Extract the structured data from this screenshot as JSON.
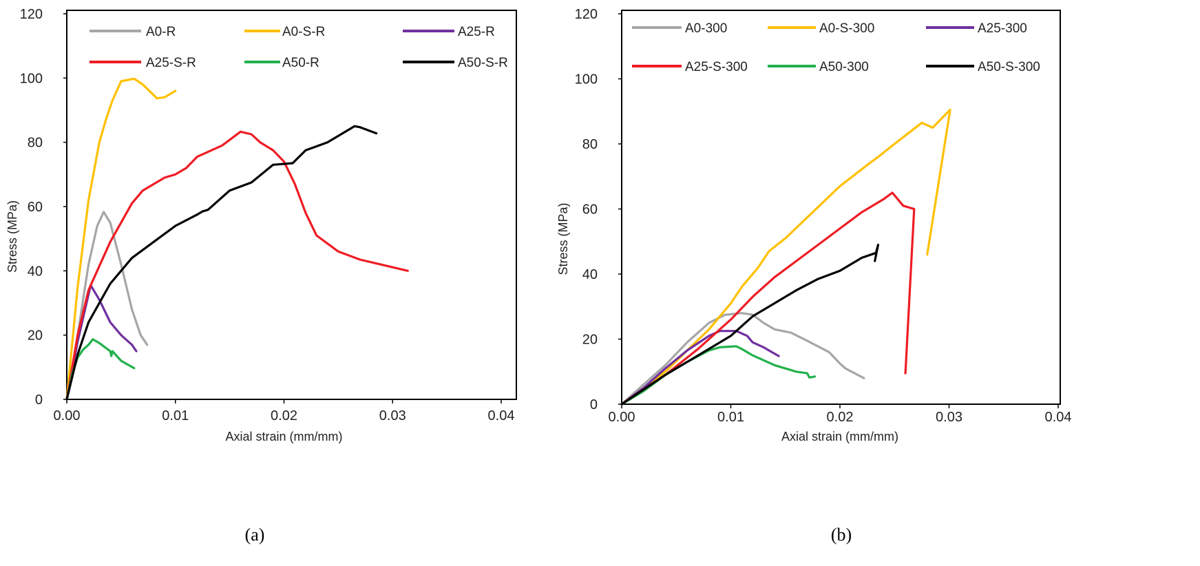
{
  "chart_data": [
    {
      "type": "line",
      "caption": "(a)",
      "xlabel": "Axial strain (mm/mm)",
      "ylabel": "Stress (MPa)",
      "xlim": [
        0,
        0.04
      ],
      "ylim": [
        0,
        120
      ],
      "xticks": [
        "0.00",
        "0.01",
        "0.02",
        "0.03",
        "0.04"
      ],
      "yticks": [
        "0",
        "20",
        "40",
        "60",
        "80",
        "100",
        "120"
      ],
      "grid": false,
      "legend_position": "top",
      "series": [
        {
          "name": "A0-R",
          "color": "#a6a6a6",
          "points": [
            [
              0,
              0
            ],
            [
              0.001,
              20
            ],
            [
              0.002,
              42
            ],
            [
              0.0028,
              54
            ],
            [
              0.0034,
              58.3
            ],
            [
              0.004,
              55
            ],
            [
              0.005,
              42
            ],
            [
              0.006,
              28
            ],
            [
              0.0068,
              20
            ],
            [
              0.0074,
              17
            ]
          ]
        },
        {
          "name": "A0-S-R",
          "color": "#ffc000",
          "points": [
            [
              0,
              0
            ],
            [
              0.001,
              35
            ],
            [
              0.002,
              62
            ],
            [
              0.003,
              80
            ],
            [
              0.0036,
              87
            ],
            [
              0.0042,
              93
            ],
            [
              0.005,
              99
            ],
            [
              0.0062,
              99.8
            ],
            [
              0.007,
              98
            ],
            [
              0.0083,
              93.7
            ],
            [
              0.009,
              94
            ],
            [
              0.01,
              96
            ]
          ]
        },
        {
          "name": "A25-R",
          "color": "#7030a0",
          "points": [
            [
              0,
              0
            ],
            [
              0.001,
              18
            ],
            [
              0.0022,
              35.5
            ],
            [
              0.003,
              31
            ],
            [
              0.004,
              24
            ],
            [
              0.005,
              20
            ],
            [
              0.006,
              17
            ],
            [
              0.0064,
              15
            ]
          ]
        },
        {
          "name": "A25-S-R",
          "color": "#ee1c24",
          "points": [
            [
              0,
              0
            ],
            [
              0.001,
              20
            ],
            [
              0.002,
              34
            ],
            [
              0.004,
              49
            ],
            [
              0.006,
              61
            ],
            [
              0.007,
              65
            ],
            [
              0.009,
              69
            ],
            [
              0.01,
              70
            ],
            [
              0.011,
              72
            ],
            [
              0.012,
              75.5
            ],
            [
              0.0143,
              79
            ],
            [
              0.016,
              83.3
            ],
            [
              0.017,
              82.5
            ],
            [
              0.0178,
              80
            ],
            [
              0.019,
              77.5
            ],
            [
              0.02,
              74
            ],
            [
              0.021,
              67
            ],
            [
              0.022,
              58
            ],
            [
              0.023,
              51
            ],
            [
              0.025,
              46
            ],
            [
              0.027,
              43.5
            ],
            [
              0.0314,
              40
            ]
          ]
        },
        {
          "name": "A50-R",
          "color": "#22b14c",
          "points": [
            [
              0,
              0
            ],
            [
              0.0005,
              8
            ],
            [
              0.001,
              13
            ],
            [
              0.0015,
              15.5
            ],
            [
              0.002,
              17
            ],
            [
              0.0024,
              18.7
            ],
            [
              0.003,
              17.5
            ],
            [
              0.004,
              15
            ],
            [
              0.0041,
              13.5
            ],
            [
              0.0042,
              15
            ],
            [
              0.005,
              12
            ],
            [
              0.0062,
              9.7
            ]
          ]
        },
        {
          "name": "A50-S-R",
          "color": "#000000",
          "points": [
            [
              0,
              0
            ],
            [
              0.001,
              14
            ],
            [
              0.002,
              24
            ],
            [
              0.003,
              30
            ],
            [
              0.004,
              36
            ],
            [
              0.005,
              40
            ],
            [
              0.006,
              44
            ],
            [
              0.008,
              49
            ],
            [
              0.01,
              54
            ],
            [
              0.012,
              57.5
            ],
            [
              0.0125,
              58.5
            ],
            [
              0.013,
              59
            ],
            [
              0.015,
              65
            ],
            [
              0.017,
              67.5
            ],
            [
              0.019,
              73
            ],
            [
              0.0208,
              73.5
            ],
            [
              0.022,
              77.5
            ],
            [
              0.024,
              80
            ],
            [
              0.0265,
              85
            ],
            [
              0.027,
              84.7
            ],
            [
              0.0285,
              82.8
            ]
          ]
        }
      ]
    },
    {
      "type": "line",
      "caption": "(b)",
      "xlabel": "Axial strain (mm/mm)",
      "ylabel": "Stress (MPa)",
      "xlim": [
        0,
        0.04
      ],
      "ylim": [
        0,
        120
      ],
      "xticks": [
        "0.00",
        "0.01",
        "0.02",
        "0.03",
        "0.04"
      ],
      "yticks": [
        "0",
        "20",
        "40",
        "60",
        "80",
        "100",
        "120"
      ],
      "grid": false,
      "legend_position": "top",
      "series": [
        {
          "name": "A0-300",
          "color": "#a6a6a6",
          "points": [
            [
              0,
              0
            ],
            [
              0.002,
              6
            ],
            [
              0.004,
              12
            ],
            [
              0.006,
              19
            ],
            [
              0.008,
              25
            ],
            [
              0.0095,
              27.5
            ],
            [
              0.011,
              28
            ],
            [
              0.012,
              27.5
            ],
            [
              0.013,
              25
            ],
            [
              0.014,
              23
            ],
            [
              0.0155,
              22
            ],
            [
              0.017,
              19.5
            ],
            [
              0.019,
              16
            ],
            [
              0.02,
              12.5
            ],
            [
              0.0205,
              11
            ],
            [
              0.0222,
              8
            ]
          ]
        },
        {
          "name": "A0-S-300",
          "color": "#ffc000",
          "points": [
            [
              0,
              0
            ],
            [
              0.004,
              10
            ],
            [
              0.008,
              23
            ],
            [
              0.01,
              31
            ],
            [
              0.011,
              36
            ],
            [
              0.0125,
              42
            ],
            [
              0.0135,
              47
            ],
            [
              0.015,
              51
            ],
            [
              0.0175,
              59
            ],
            [
              0.02,
              67
            ],
            [
              0.0225,
              73.5
            ],
            [
              0.0235,
              76
            ],
            [
              0.025,
              80
            ],
            [
              0.0275,
              86.5
            ],
            [
              0.0285,
              85
            ],
            [
              0.0301,
              90.5
            ],
            [
              0.028,
              46
            ]
          ]
        },
        {
          "name": "A25-300",
          "color": "#7030a0",
          "points": [
            [
              0,
              0
            ],
            [
              0.002,
              5
            ],
            [
              0.004,
              11
            ],
            [
              0.006,
              16.5
            ],
            [
              0.008,
              21
            ],
            [
              0.009,
              22.5
            ],
            [
              0.0105,
              22.5
            ],
            [
              0.0115,
              21
            ],
            [
              0.012,
              19
            ],
            [
              0.013,
              17.5
            ],
            [
              0.0135,
              16.5
            ],
            [
              0.0144,
              14.8
            ]
          ]
        },
        {
          "name": "A25-S-300",
          "color": "#ee1c24",
          "points": [
            [
              0,
              0
            ],
            [
              0.004,
              9
            ],
            [
              0.007,
              17
            ],
            [
              0.01,
              26
            ],
            [
              0.012,
              33
            ],
            [
              0.014,
              39
            ],
            [
              0.016,
              44
            ],
            [
              0.018,
              49
            ],
            [
              0.02,
              54
            ],
            [
              0.022,
              59
            ],
            [
              0.024,
              63
            ],
            [
              0.0248,
              65
            ],
            [
              0.0258,
              61
            ],
            [
              0.0265,
              60.3
            ],
            [
              0.0268,
              60
            ],
            [
              0.026,
              9.5
            ]
          ]
        },
        {
          "name": "A50-300",
          "color": "#22b14c",
          "points": [
            [
              0,
              0
            ],
            [
              0.002,
              4
            ],
            [
              0.004,
              9
            ],
            [
              0.006,
              13
            ],
            [
              0.008,
              16.5
            ],
            [
              0.009,
              17.5
            ],
            [
              0.0105,
              17.8
            ],
            [
              0.011,
              17
            ],
            [
              0.012,
              15
            ],
            [
              0.014,
              12
            ],
            [
              0.016,
              10
            ],
            [
              0.017,
              9.5
            ],
            [
              0.0172,
              8.2
            ],
            [
              0.0177,
              8.5
            ]
          ]
        },
        {
          "name": "A50-S-300",
          "color": "#000000",
          "points": [
            [
              0,
              0
            ],
            [
              0.004,
              9
            ],
            [
              0.008,
              17
            ],
            [
              0.01,
              21
            ],
            [
              0.012,
              27
            ],
            [
              0.014,
              31
            ],
            [
              0.016,
              35
            ],
            [
              0.018,
              38.5
            ],
            [
              0.02,
              41
            ],
            [
              0.022,
              45
            ],
            [
              0.0233,
              46.5
            ],
            [
              0.0235,
              49
            ],
            [
              0.0232,
              44
            ]
          ]
        }
      ]
    }
  ]
}
